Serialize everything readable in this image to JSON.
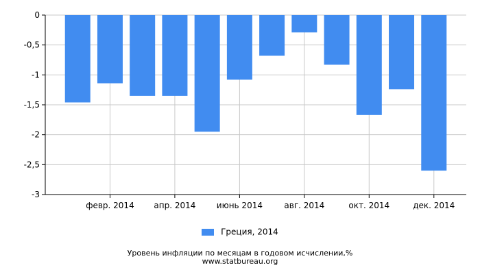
{
  "chart_data": {
    "type": "bar",
    "title": "Уровень инфляции по месяцам в годовом исчислении,%",
    "source": "www.statbureau.org",
    "series": [
      {
        "name": "Греция, 2014",
        "color": "#418cf0",
        "values": [
          -1.46,
          -1.14,
          -1.35,
          -1.35,
          -1.95,
          -1.08,
          -0.68,
          -0.29,
          -0.83,
          -1.67,
          -1.24,
          -2.6
        ]
      }
    ],
    "x_tick_labels": [
      "февр. 2014",
      "апр. 2014",
      "июнь 2014",
      "авг. 2014",
      "окт. 2014",
      "дек. 2014"
    ],
    "y_tick_labels": [
      "0",
      "-0,5",
      "-1",
      "-1,5",
      "-2",
      "-2,5",
      "-3"
    ],
    "ylim": [
      -3,
      0
    ],
    "grid": true,
    "legend_position": "bottom-center"
  }
}
